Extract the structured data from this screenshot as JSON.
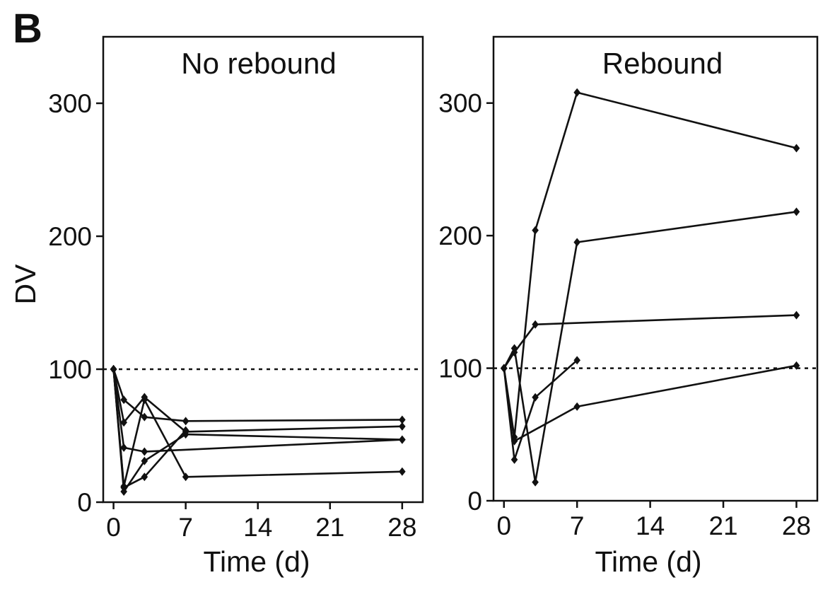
{
  "figure": {
    "panel_letter": "B"
  },
  "chart_data": [
    {
      "type": "line",
      "title": "No rebound",
      "xlabel": "Time (d)",
      "ylabel": "DV",
      "xlim": [
        -1,
        30
      ],
      "ylim": [
        0,
        350
      ],
      "xticks": [
        0,
        7,
        14,
        21,
        28
      ],
      "yticks": [
        0,
        100,
        200,
        300
      ],
      "reference_line_y": 100,
      "x": [
        0,
        1,
        3,
        7,
        28
      ],
      "series": [
        {
          "values": [
            100,
            77,
            64,
            61,
            62
          ]
        },
        {
          "values": [
            100,
            60,
            79,
            53,
            57
          ]
        },
        {
          "values": [
            100,
            8,
            31,
            51,
            47
          ]
        },
        {
          "values": [
            100,
            41,
            38,
            null,
            47
          ]
        },
        {
          "values": [
            100,
            11,
            19,
            54,
            null
          ]
        },
        {
          "values": [
            100,
            12,
            77,
            19,
            23
          ]
        }
      ]
    },
    {
      "type": "line",
      "title": "Rebound",
      "xlabel": "Time (d)",
      "ylabel": "",
      "xlim": [
        -1,
        30
      ],
      "ylim": [
        0,
        350
      ],
      "xticks": [
        0,
        7,
        14,
        21,
        28
      ],
      "yticks": [
        0,
        100,
        200,
        300
      ],
      "reference_line_y": 100,
      "x": [
        0,
        1,
        3,
        7,
        28
      ],
      "series": [
        {
          "values": [
            100,
            48,
            204,
            308,
            266
          ]
        },
        {
          "values": [
            100,
            115,
            14,
            195,
            218
          ]
        },
        {
          "values": [
            100,
            112,
            133,
            null,
            140
          ]
        },
        {
          "values": [
            100,
            31,
            78,
            106,
            null
          ]
        },
        {
          "values": [
            100,
            45,
            null,
            71,
            102
          ]
        }
      ]
    }
  ]
}
